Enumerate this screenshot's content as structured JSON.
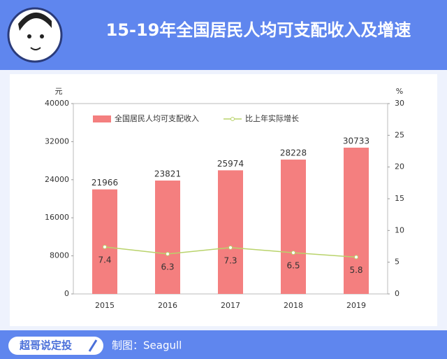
{
  "header": {
    "title": "15-19年全国居民人均可支配收入及增速"
  },
  "chart_data": {
    "type": "bar-line",
    "y_unit": "元",
    "y2_unit": "%",
    "categories": [
      "2015",
      "2016",
      "2017",
      "2018",
      "2019"
    ],
    "series": [
      {
        "name": "全国居民人均可支配收入",
        "color": "#f47f7f",
        "type": "bar",
        "values": [
          21966,
          23821,
          25974,
          28228,
          30733
        ]
      },
      {
        "name": "比上年实际增长",
        "color": "#b9d36b",
        "type": "line",
        "axis": "y2",
        "values": [
          7.4,
          6.3,
          7.3,
          6.5,
          5.8
        ]
      }
    ],
    "ylim": [
      0,
      40000
    ],
    "yticks": [
      0,
      8000,
      16000,
      24000,
      32000,
      40000
    ],
    "y2lim": [
      0,
      30
    ],
    "y2ticks": [
      0,
      5,
      10,
      15,
      20,
      25,
      30
    ]
  },
  "footer": {
    "brand": "超哥说定投",
    "credit": "制图：Seagull"
  }
}
